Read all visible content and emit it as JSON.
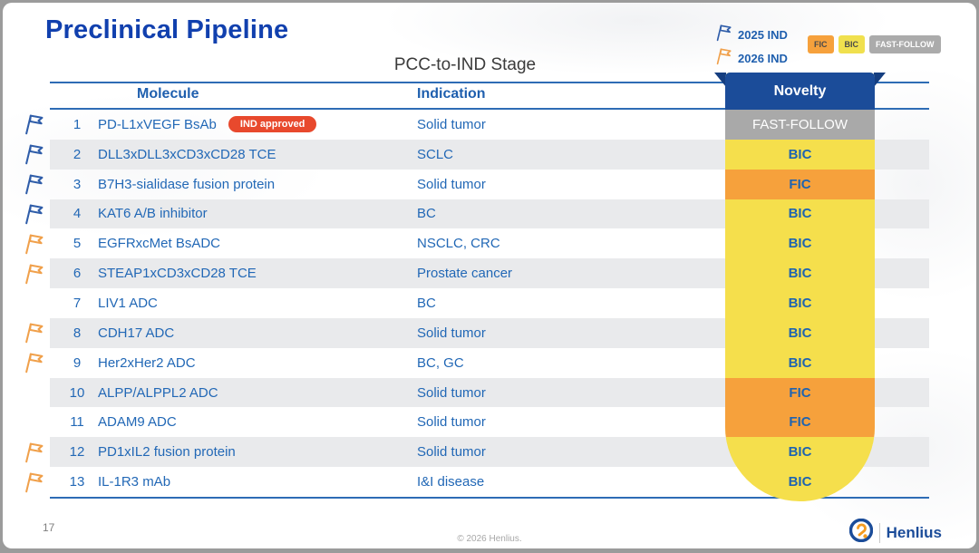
{
  "slide": {
    "title": "Preclinical Pipeline",
    "stage_label": "PCC-to-IND Stage",
    "page_number": "17",
    "footer_copyright": "© 2026 Henlius.",
    "logo_text": "Henlius"
  },
  "legend": {
    "flags": [
      {
        "label": "2025 IND",
        "color": "blue"
      },
      {
        "label": "2026 IND",
        "color": "orange"
      }
    ],
    "chips": [
      {
        "label": "FIC",
        "bg": "#F6A13C"
      },
      {
        "label": "BIC",
        "bg": "#F0E04E"
      },
      {
        "label": "FAST-FOLLOW",
        "bg": "#ABABAB"
      }
    ]
  },
  "table": {
    "columns": {
      "molecule": "Molecule",
      "indication": "Indication",
      "novelty": "Novelty"
    },
    "rows": [
      {
        "num": "1",
        "molecule": "PD-L1xVEGF BsAb",
        "badge": "IND approved",
        "indication": "Solid tumor",
        "novelty": "FAST-FOLLOW",
        "flag": "blue"
      },
      {
        "num": "2",
        "molecule": "DLL3xDLL3xCD3xCD28 TCE",
        "badge": "",
        "indication": "SCLC",
        "novelty": "BIC",
        "flag": "blue"
      },
      {
        "num": "3",
        "molecule": "B7H3-sialidase fusion protein",
        "badge": "",
        "indication": "Solid tumor",
        "novelty": "FIC",
        "flag": "blue"
      },
      {
        "num": "4",
        "molecule": "KAT6 A/B inhibitor",
        "badge": "",
        "indication": "BC",
        "novelty": "BIC",
        "flag": "blue"
      },
      {
        "num": "5",
        "molecule": "EGFRxcMet BsADC",
        "badge": "",
        "indication": "NSCLC, CRC",
        "novelty": "BIC",
        "flag": "orange"
      },
      {
        "num": "6",
        "molecule": "STEAP1xCD3xCD28 TCE",
        "badge": "",
        "indication": "Prostate cancer",
        "novelty": "BIC",
        "flag": "orange"
      },
      {
        "num": "7",
        "molecule": "LIV1 ADC",
        "badge": "",
        "indication": "BC",
        "novelty": "BIC",
        "flag": "none"
      },
      {
        "num": "8",
        "molecule": "CDH17 ADC",
        "badge": "",
        "indication": "Solid tumor",
        "novelty": "BIC",
        "flag": "orange"
      },
      {
        "num": "9",
        "molecule": "Her2xHer2 ADC",
        "badge": "",
        "indication": "BC, GC",
        "novelty": "BIC",
        "flag": "orange"
      },
      {
        "num": "10",
        "molecule": "ALPP/ALPPL2 ADC",
        "badge": "",
        "indication": "Solid tumor",
        "novelty": "FIC",
        "flag": "none"
      },
      {
        "num": "11",
        "molecule": "ADAM9 ADC",
        "badge": "",
        "indication": "Solid tumor",
        "novelty": "FIC",
        "flag": "none"
      },
      {
        "num": "12",
        "molecule": "PD1xIL2 fusion protein",
        "badge": "",
        "indication": "Solid tumor",
        "novelty": "BIC",
        "flag": "orange"
      },
      {
        "num": "13",
        "molecule": "IL-1R3 mAb",
        "badge": "",
        "indication": "I&I disease",
        "novelty": "BIC",
        "flag": "orange"
      }
    ]
  },
  "colors": {
    "title_blue": "#1140AE",
    "text_blue": "#2268B6",
    "header_dark_blue": "#1B4C99",
    "line_blue": "#2E6CB5",
    "novelty_fic": "#F6A13C",
    "novelty_bic": "#F5DF4C",
    "novelty_fast_follow": "#A9A9A9",
    "badge_red": "#E8492D",
    "flag_blue": "#2F5DA9",
    "flag_orange": "#F0A04B",
    "row_band_gray": "#E9EAEC"
  }
}
